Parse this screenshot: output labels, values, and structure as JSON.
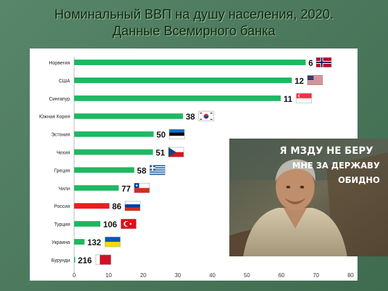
{
  "title_line1": "Номинальный ВВП на душу населения, 2020.",
  "title_line2": "Данные Всемирного банка",
  "photo": {
    "caption_line1": "Я МЗДУ НЕ БЕРУ",
    "caption_line2": "МНЕ ЗА ДЕРЖАВУ",
    "caption_line3": "ОБИДНО"
  },
  "chart_data": {
    "type": "bar",
    "orientation": "horizontal",
    "categories": [
      "Норвегия",
      "США",
      "Сингапур",
      "Южная Корея",
      "Эстония",
      "Чехия",
      "Греция",
      "Чили",
      "Россия",
      "Турция",
      "Украина",
      "Бурунди"
    ],
    "values": [
      67,
      63,
      59.8,
      31.5,
      23.0,
      22.8,
      17.4,
      12.9,
      10.2,
      7.6,
      3.0,
      0.3
    ],
    "rank_labels": [
      "6",
      "12",
      "11",
      "38",
      "50",
      "51",
      "58",
      "77",
      "86",
      "106",
      "132",
      "216"
    ],
    "bar_colors": [
      "#1fb861",
      "#1fb861",
      "#1fb861",
      "#1fb861",
      "#1fb861",
      "#1fb861",
      "#1fb861",
      "#1fb861",
      "#ee1c1c",
      "#1fb861",
      "#1fb861",
      "#1fb861"
    ],
    "flags": [
      "norway-flag",
      "usa-flag",
      "singapore-flag",
      "south-korea-flag",
      "estonia-flag",
      "czech-flag",
      "greece-flag",
      "chile-flag",
      "russia-flag",
      "turkey-flag",
      "ukraine-flag",
      "bahrain-flag"
    ],
    "x_ticks": [
      "0",
      "10",
      "20",
      "30",
      "40",
      "50",
      "60",
      "70",
      "80"
    ],
    "xlim": [
      0,
      80
    ],
    "grid": false,
    "legend": "none"
  }
}
